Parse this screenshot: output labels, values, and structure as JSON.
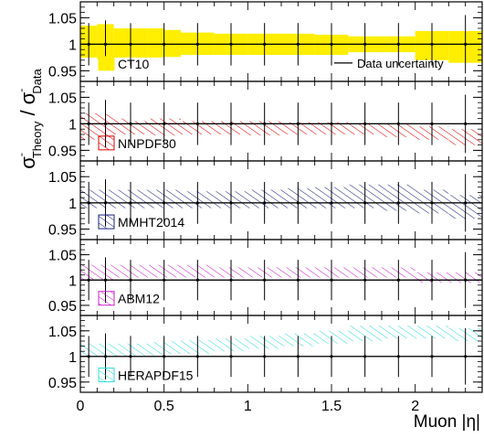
{
  "figure": {
    "ylabel_main": "σ",
    "ylabel_sup": "-",
    "ylabel_sub_theory": "Theory",
    "ylabel_slash": " / ",
    "ylabel_sub_data": "Data",
    "xlabel": "Muon |η|",
    "data_uncertainty_label": "Data uncertainty"
  },
  "chart_data": [
    {
      "type": "area",
      "panel": 1,
      "legend": "CT10",
      "color": "#ffee00",
      "fill": "solid",
      "x_bins": [
        0,
        0.1,
        0.2,
        0.3,
        0.4,
        0.5,
        0.6,
        0.8,
        1.0,
        1.2,
        1.4,
        1.6,
        1.8,
        2.0,
        2.2,
        2.4
      ],
      "band_low": [
        0.975,
        0.972,
        0.975,
        0.975,
        0.975,
        0.976,
        0.98,
        0.98,
        0.98,
        0.98,
        0.98,
        0.985,
        0.985,
        0.97,
        0.965
      ],
      "band_high": [
        1.035,
        1.038,
        1.03,
        1.03,
        1.03,
        1.027,
        1.022,
        1.02,
        1.02,
        1.02,
        1.018,
        1.015,
        1.015,
        1.025,
        1.025
      ],
      "ylim": [
        0.93,
        1.08
      ],
      "yticks": [
        "0.95",
        "1",
        "1.05"
      ]
    },
    {
      "type": "area",
      "panel": 2,
      "legend": "NNPDF30",
      "color": "#e00000",
      "fill": "hatch",
      "x_bins": [
        0,
        0.1,
        0.2,
        0.3,
        0.4,
        0.5,
        0.6,
        0.8,
        1.0,
        1.2,
        1.4,
        1.6,
        1.8,
        2.0,
        2.2,
        2.4
      ],
      "band_low": [
        0.97,
        0.975,
        0.98,
        0.98,
        0.978,
        0.978,
        0.98,
        0.98,
        0.978,
        0.98,
        0.98,
        0.98,
        0.975,
        0.97,
        0.96
      ],
      "band_high": [
        1.02,
        1.018,
        1.01,
        1.005,
        1.01,
        1.01,
        1.005,
        1.005,
        1.005,
        1.003,
        1.003,
        1.0,
        1.0,
        0.995,
        0.99
      ],
      "ylim": [
        0.93,
        1.08
      ],
      "yticks": [
        "0.95",
        "1",
        "1.05"
      ]
    },
    {
      "type": "area",
      "panel": 3,
      "legend": "MMHT2014",
      "color": "#1a237e",
      "fill": "hatch",
      "x_bins": [
        0,
        0.1,
        0.2,
        0.3,
        0.4,
        0.5,
        0.6,
        0.8,
        1.0,
        1.2,
        1.4,
        1.6,
        1.8,
        2.0,
        2.2,
        2.4
      ],
      "band_low": [
        0.99,
        0.99,
        0.99,
        0.99,
        0.99,
        0.99,
        0.99,
        0.99,
        0.99,
        0.99,
        0.99,
        0.99,
        0.985,
        0.98,
        0.97
      ],
      "band_high": [
        1.025,
        1.025,
        1.025,
        1.025,
        1.025,
        1.025,
        1.022,
        1.022,
        1.025,
        1.028,
        1.03,
        1.035,
        1.035,
        1.025,
        1.015
      ],
      "ylim": [
        0.93,
        1.08
      ],
      "yticks": [
        "0.95",
        "1",
        "1.05"
      ]
    },
    {
      "type": "area",
      "panel": 4,
      "legend": "ABM12",
      "color": "#cc22cc",
      "fill": "hatch",
      "x_bins": [
        0,
        0.1,
        0.2,
        0.3,
        0.4,
        0.5,
        0.6,
        0.8,
        1.0,
        1.2,
        1.4,
        1.6,
        1.8,
        2.0,
        2.2,
        2.4
      ],
      "band_low": [
        1.0,
        1.0,
        1.005,
        1.005,
        1.005,
        1.005,
        1.005,
        1.005,
        1.005,
        1.005,
        1.005,
        1.005,
        1.005,
        0.995,
        0.995
      ],
      "band_high": [
        1.03,
        1.03,
        1.03,
        1.03,
        1.03,
        1.03,
        1.03,
        1.025,
        1.025,
        1.025,
        1.025,
        1.025,
        1.025,
        1.015,
        1.015
      ],
      "ylim": [
        0.93,
        1.08
      ],
      "yticks": [
        "0.95",
        "1",
        "1.05"
      ]
    },
    {
      "type": "area",
      "panel": 5,
      "legend": "HERAPDF15",
      "color": "#33dddd",
      "fill": "hatch",
      "x_bins": [
        0,
        0.1,
        0.2,
        0.3,
        0.4,
        0.5,
        0.6,
        0.8,
        1.0,
        1.2,
        1.4,
        1.6,
        1.8,
        2.0,
        2.2,
        2.4
      ],
      "band_low": [
        1.0,
        1.0,
        1.0,
        1.0,
        1.002,
        1.005,
        1.005,
        1.01,
        1.015,
        1.02,
        1.025,
        1.03,
        1.035,
        1.035,
        1.03
      ],
      "band_high": [
        1.025,
        1.025,
        1.025,
        1.025,
        1.028,
        1.03,
        1.032,
        1.035,
        1.04,
        1.045,
        1.05,
        1.06,
        1.06,
        1.06,
        1.055
      ],
      "ylim": [
        0.93,
        1.08
      ],
      "yticks": [
        "0.95",
        "1",
        "1.05"
      ],
      "xticks": [
        "0",
        "0.5",
        "1",
        "1.5",
        "2"
      ],
      "xlim": [
        0,
        2.4
      ]
    }
  ],
  "data_points": {
    "x": [
      0.05,
      0.15,
      0.3,
      0.5,
      0.7,
      0.9,
      1.1,
      1.3,
      1.5,
      1.7,
      1.9,
      2.1,
      2.3
    ],
    "y": [
      1,
      1,
      1,
      1,
      1,
      1,
      1,
      1,
      1,
      1,
      1,
      1,
      1
    ],
    "err": [
      0.04,
      0.045,
      0.04,
      0.04,
      0.04,
      0.04,
      0.04,
      0.04,
      0.04,
      0.04,
      0.04,
      0.04,
      0.055
    ],
    "xerr": [
      0.05,
      0.05,
      0.1,
      0.1,
      0.1,
      0.1,
      0.1,
      0.1,
      0.1,
      0.1,
      0.1,
      0.1,
      0.1
    ]
  }
}
